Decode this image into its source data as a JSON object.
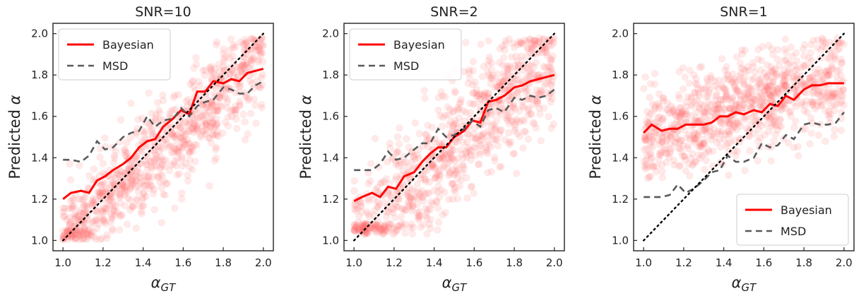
{
  "chart_data": [
    {
      "type": "scatter",
      "title": "SNR=10",
      "xlabel": "α_GT",
      "ylabel": "Predicted α",
      "xlim": [
        0.95,
        2.05
      ],
      "ylim": [
        0.95,
        2.05
      ],
      "xticks": [
        "1.0",
        "1.2",
        "1.4",
        "1.6",
        "1.8",
        "2.0"
      ],
      "yticks": [
        "1.0",
        "1.2",
        "1.4",
        "1.6",
        "1.8",
        "2.0"
      ],
      "legend": {
        "position": "upper-left",
        "entries": [
          "Bayesian",
          "MSD"
        ]
      },
      "scatter": {
        "color": "#ff6b6b",
        "alpha": 0.15,
        "spread": 0.12,
        "bias": 0.0,
        "floor": 1.0,
        "n": 900
      },
      "x": [
        1.0,
        1.04,
        1.09,
        1.13,
        1.17,
        1.21,
        1.25,
        1.3,
        1.34,
        1.38,
        1.42,
        1.46,
        1.5,
        1.55,
        1.59,
        1.63,
        1.67,
        1.71,
        1.75,
        1.8,
        1.84,
        1.88,
        1.92,
        1.96,
        2.0
      ],
      "series": [
        {
          "name": "Bayesian",
          "color": "#ff0000",
          "style": "solid",
          "values": [
            1.2,
            1.23,
            1.24,
            1.23,
            1.29,
            1.31,
            1.34,
            1.37,
            1.4,
            1.45,
            1.48,
            1.49,
            1.55,
            1.59,
            1.63,
            1.61,
            1.72,
            1.72,
            1.77,
            1.76,
            1.78,
            1.77,
            1.81,
            1.82,
            1.83
          ]
        },
        {
          "name": "MSD",
          "color": "#595959",
          "style": "dashed",
          "values": [
            1.39,
            1.39,
            1.38,
            1.41,
            1.48,
            1.44,
            1.45,
            1.5,
            1.52,
            1.53,
            1.6,
            1.55,
            1.58,
            1.59,
            1.64,
            1.6,
            1.65,
            1.67,
            1.68,
            1.74,
            1.73,
            1.71,
            1.71,
            1.75,
            1.77
          ]
        },
        {
          "name": "identity",
          "color": "#000000",
          "style": "dotted",
          "values": [
            1.0,
            2.0
          ],
          "x": [
            1.0,
            2.0
          ]
        }
      ]
    },
    {
      "type": "scatter",
      "title": "SNR=2",
      "xlabel": "α_GT",
      "ylabel": "Predicted α",
      "xlim": [
        0.95,
        2.05
      ],
      "ylim": [
        0.95,
        2.05
      ],
      "xticks": [
        "1.0",
        "1.2",
        "1.4",
        "1.6",
        "1.8",
        "2.0"
      ],
      "yticks": [
        "1.0",
        "1.2",
        "1.4",
        "1.6",
        "1.8",
        "2.0"
      ],
      "legend": {
        "position": "upper-left",
        "entries": [
          "Bayesian",
          "MSD"
        ]
      },
      "scatter": {
        "color": "#ff6b6b",
        "alpha": 0.15,
        "spread": 0.15,
        "bias": 0.0,
        "floor": 1.03,
        "n": 900
      },
      "x": [
        1.0,
        1.04,
        1.09,
        1.13,
        1.17,
        1.21,
        1.25,
        1.3,
        1.34,
        1.38,
        1.42,
        1.46,
        1.5,
        1.55,
        1.59,
        1.63,
        1.67,
        1.71,
        1.75,
        1.8,
        1.84,
        1.88,
        1.92,
        1.96,
        2.0
      ],
      "series": [
        {
          "name": "Bayesian",
          "color": "#ff0000",
          "style": "solid",
          "values": [
            1.19,
            1.21,
            1.23,
            1.21,
            1.26,
            1.25,
            1.31,
            1.33,
            1.38,
            1.42,
            1.45,
            1.45,
            1.5,
            1.53,
            1.58,
            1.57,
            1.67,
            1.68,
            1.7,
            1.74,
            1.75,
            1.77,
            1.78,
            1.79,
            1.8
          ]
        },
        {
          "name": "MSD",
          "color": "#595959",
          "style": "dashed",
          "values": [
            1.34,
            1.34,
            1.34,
            1.37,
            1.43,
            1.39,
            1.4,
            1.44,
            1.47,
            1.47,
            1.54,
            1.5,
            1.51,
            1.54,
            1.58,
            1.55,
            1.63,
            1.64,
            1.62,
            1.69,
            1.68,
            1.7,
            1.69,
            1.7,
            1.73
          ]
        },
        {
          "name": "identity",
          "color": "#000000",
          "style": "dotted",
          "values": [
            1.0,
            2.0
          ],
          "x": [
            1.0,
            2.0
          ]
        }
      ]
    },
    {
      "type": "scatter",
      "title": "SNR=1",
      "xlabel": "α_GT",
      "ylabel": "Predicted α",
      "xlim": [
        0.95,
        2.05
      ],
      "ylim": [
        0.95,
        2.05
      ],
      "xticks": [
        "1.0",
        "1.2",
        "1.4",
        "1.6",
        "1.8",
        "2.0"
      ],
      "yticks": [
        "1.0",
        "1.2",
        "1.4",
        "1.6",
        "1.8",
        "2.0"
      ],
      "legend": {
        "position": "lower-right",
        "entries": [
          "Bayesian",
          "MSD"
        ]
      },
      "scatter": {
        "color": "#ff6b6b",
        "alpha": 0.15,
        "spread": 0.12,
        "bias": 0.5,
        "floor": 1.3,
        "n": 900
      },
      "x": [
        1.0,
        1.04,
        1.09,
        1.13,
        1.17,
        1.21,
        1.25,
        1.3,
        1.34,
        1.38,
        1.42,
        1.46,
        1.5,
        1.55,
        1.59,
        1.63,
        1.67,
        1.71,
        1.75,
        1.8,
        1.84,
        1.88,
        1.92,
        1.96,
        2.0
      ],
      "series": [
        {
          "name": "Bayesian",
          "color": "#ff0000",
          "style": "solid",
          "values": [
            1.52,
            1.56,
            1.53,
            1.54,
            1.54,
            1.56,
            1.56,
            1.56,
            1.57,
            1.6,
            1.6,
            1.62,
            1.61,
            1.63,
            1.62,
            1.66,
            1.65,
            1.7,
            1.68,
            1.73,
            1.75,
            1.75,
            1.76,
            1.76,
            1.76
          ]
        },
        {
          "name": "MSD",
          "color": "#595959",
          "style": "dashed",
          "values": [
            1.21,
            1.21,
            1.21,
            1.22,
            1.27,
            1.23,
            1.25,
            1.29,
            1.33,
            1.34,
            1.41,
            1.38,
            1.38,
            1.4,
            1.47,
            1.45,
            1.46,
            1.51,
            1.49,
            1.56,
            1.57,
            1.56,
            1.56,
            1.57,
            1.62
          ]
        },
        {
          "name": "identity",
          "color": "#000000",
          "style": "dotted",
          "values": [
            1.0,
            2.0
          ],
          "x": [
            1.0,
            2.0
          ]
        }
      ]
    }
  ]
}
